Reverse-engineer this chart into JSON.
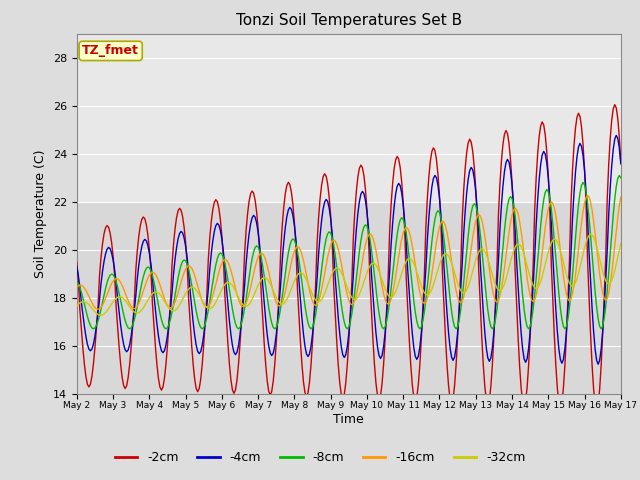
{
  "title": "Tonzi Soil Temperatures Set B",
  "xlabel": "Time",
  "ylabel": "Soil Temperature (C)",
  "ylim": [
    14,
    29
  ],
  "xlim": [
    0,
    360
  ],
  "yticks": [
    14,
    16,
    18,
    20,
    22,
    24,
    26,
    28
  ],
  "xtick_labels": [
    "May 2",
    "May 3",
    "May 4",
    "May 5",
    "May 6",
    "May 7",
    "May 8",
    "May 9",
    "May 10",
    "May 11",
    "May 12",
    "May 13",
    "May 14",
    "May 15",
    "May 16",
    "May 17"
  ],
  "xtick_positions": [
    0,
    24,
    48,
    72,
    96,
    120,
    144,
    168,
    192,
    216,
    240,
    264,
    288,
    312,
    336,
    360
  ],
  "series": [
    {
      "label": "-2cm",
      "color": "#cc0000"
    },
    {
      "label": "-4cm",
      "color": "#0000cc"
    },
    {
      "label": "-8cm",
      "color": "#00bb00"
    },
    {
      "label": "-16cm",
      "color": "#ff9900"
    },
    {
      "label": "-32cm",
      "color": "#cccc00"
    }
  ],
  "annotation_text": "TZ_fmet",
  "annotation_color": "#cc0000",
  "annotation_bg": "#ffffcc",
  "annotation_edge": "#aaaa00",
  "background_color": "#dddddd",
  "plot_bg_upper": "#e8e8e8",
  "plot_bg_lower": "#d8d8d8",
  "grid_color": "#ffffff",
  "figsize": [
    6.4,
    4.8
  ],
  "dpi": 100
}
